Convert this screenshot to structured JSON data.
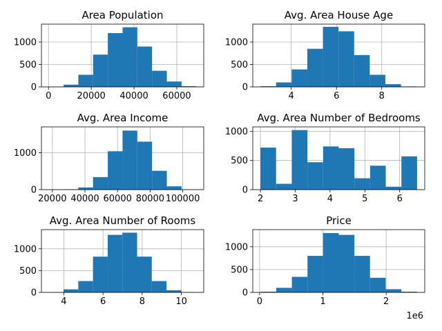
{
  "figure": {
    "background": "#ffffff",
    "bar_color": "#1f77b4",
    "grid": true
  },
  "chart_data": [
    {
      "type": "bar",
      "title": "Area Population",
      "bins": [
        [
          172.6,
          7066.9
        ],
        [
          7066.9,
          13961.2
        ],
        [
          13961.2,
          20855.5
        ],
        [
          20855.5,
          27749.8
        ],
        [
          27749.8,
          34644.1
        ],
        [
          34644.1,
          41538.4
        ],
        [
          41538.4,
          48432.7
        ],
        [
          48432.7,
          55327.0
        ],
        [
          55327.0,
          62221.3
        ],
        [
          62221.3,
          69115.6
        ]
      ],
      "values": [
        5,
        50,
        270,
        720,
        1200,
        1330,
        900,
        360,
        120,
        15
      ],
      "xlim": [
        -3300,
        72600
      ],
      "ylim": [
        0,
        1400
      ],
      "xticks": [
        {
          "value": 0,
          "label": "0"
        },
        {
          "value": 20000,
          "label": "20000"
        },
        {
          "value": 40000,
          "label": "40000"
        },
        {
          "value": 60000,
          "label": "60000"
        }
      ],
      "yticks": [
        {
          "value": 0,
          "label": "0"
        },
        {
          "value": 500,
          "label": "500"
        },
        {
          "value": 1000,
          "label": "1000"
        }
      ]
    },
    {
      "type": "bar",
      "title": "Avg. Area House Age",
      "bins": [
        [
          2.64,
          3.33
        ],
        [
          3.33,
          4.02
        ],
        [
          4.02,
          4.71
        ],
        [
          4.71,
          5.4
        ],
        [
          5.4,
          6.09
        ],
        [
          6.09,
          6.78
        ],
        [
          6.78,
          7.47
        ],
        [
          7.47,
          8.16
        ],
        [
          8.16,
          8.85
        ],
        [
          8.85,
          9.54
        ]
      ],
      "values": [
        15,
        100,
        390,
        850,
        1340,
        1240,
        710,
        270,
        60,
        10
      ],
      "xlim": [
        2.3,
        9.9
      ],
      "ylim": [
        0,
        1400
      ],
      "xticks": [
        {
          "value": 4,
          "label": "4"
        },
        {
          "value": 6,
          "label": "6"
        },
        {
          "value": 8,
          "label": "8"
        }
      ],
      "yticks": [
        {
          "value": 0,
          "label": "0"
        },
        {
          "value": 500,
          "label": "500"
        },
        {
          "value": 1000,
          "label": "1000"
        }
      ]
    },
    {
      "type": "bar",
      "title": "Avg. Area Income",
      "bins": [
        [
          17797,
          26853
        ],
        [
          26853,
          35909
        ],
        [
          35909,
          44965
        ],
        [
          44965,
          54021
        ],
        [
          54021,
          63077
        ],
        [
          63077,
          72133
        ],
        [
          72133,
          81189
        ],
        [
          81189,
          90245
        ],
        [
          90245,
          99301
        ],
        [
          99301,
          108357
        ]
      ],
      "values": [
        2,
        10,
        60,
        340,
        1040,
        1600,
        1300,
        510,
        90,
        5
      ],
      "xlim": [
        13300,
        112900
      ],
      "ylim": [
        0,
        1700
      ],
      "xticks": [
        {
          "value": 20000,
          "label": "20000"
        },
        {
          "value": 40000,
          "label": "40000"
        },
        {
          "value": 60000,
          "label": "60000"
        },
        {
          "value": 80000,
          "label": "80000"
        },
        {
          "value": 100000,
          "label": "100000"
        }
      ],
      "yticks": [
        {
          "value": 0,
          "label": "0"
        },
        {
          "value": 1000,
          "label": "1000"
        }
      ]
    },
    {
      "type": "bar",
      "title": "Avg. Area Number of Bedrooms",
      "bins": [
        [
          2.0,
          2.45
        ],
        [
          2.45,
          2.9
        ],
        [
          2.9,
          3.35
        ],
        [
          3.35,
          3.8
        ],
        [
          3.8,
          4.25
        ],
        [
          4.25,
          4.7
        ],
        [
          4.7,
          5.15
        ],
        [
          5.15,
          5.6
        ],
        [
          5.6,
          6.05
        ],
        [
          6.05,
          6.5
        ]
      ],
      "values": [
        720,
        100,
        1020,
        470,
        740,
        710,
        195,
        410,
        50,
        570
      ],
      "xlim": [
        1.78,
        6.72
      ],
      "ylim": [
        0,
        1075
      ],
      "xticks": [
        {
          "value": 2,
          "label": "2"
        },
        {
          "value": 3,
          "label": "3"
        },
        {
          "value": 4,
          "label": "4"
        },
        {
          "value": 5,
          "label": "5"
        },
        {
          "value": 6,
          "label": "6"
        }
      ],
      "yticks": [
        {
          "value": 0,
          "label": "0"
        },
        {
          "value": 500,
          "label": "500"
        },
        {
          "value": 1000,
          "label": "1000"
        }
      ]
    },
    {
      "type": "bar",
      "title": "Avg. Area Number of Rooms",
      "bins": [
        [
          3.24,
          3.99
        ],
        [
          3.99,
          4.74
        ],
        [
          4.74,
          5.49
        ],
        [
          5.49,
          6.24
        ],
        [
          6.24,
          6.99
        ],
        [
          6.99,
          7.74
        ],
        [
          7.74,
          8.49
        ],
        [
          8.49,
          9.24
        ],
        [
          9.24,
          9.99
        ],
        [
          9.99,
          10.76
        ]
      ],
      "values": [
        5,
        70,
        260,
        820,
        1320,
        1370,
        820,
        260,
        50,
        5
      ],
      "xlim": [
        2.86,
        11.14
      ],
      "ylim": [
        0,
        1440
      ],
      "xticks": [
        {
          "value": 4,
          "label": "4"
        },
        {
          "value": 6,
          "label": "6"
        },
        {
          "value": 8,
          "label": "8"
        },
        {
          "value": 10,
          "label": "10"
        }
      ],
      "yticks": [
        {
          "value": 0,
          "label": "0"
        },
        {
          "value": 500,
          "label": "500"
        },
        {
          "value": 1000,
          "label": "1000"
        }
      ]
    },
    {
      "type": "bar",
      "title": "Price",
      "offset_label": "1e6",
      "bins": [
        [
          0.016,
          0.263
        ],
        [
          0.263,
          0.51
        ],
        [
          0.51,
          0.757
        ],
        [
          0.757,
          1.004
        ],
        [
          1.004,
          1.251
        ],
        [
          1.251,
          1.498
        ],
        [
          1.498,
          1.745
        ],
        [
          1.745,
          1.992
        ],
        [
          1.992,
          2.239
        ],
        [
          2.239,
          2.486
        ]
      ],
      "values": [
        15,
        100,
        340,
        800,
        1300,
        1260,
        800,
        320,
        70,
        15
      ],
      "xlim": [
        -0.108,
        2.61
      ],
      "ylim": [
        0,
        1375
      ],
      "xticks": [
        {
          "value": 0,
          "label": "0"
        },
        {
          "value": 1,
          "label": "1"
        },
        {
          "value": 2,
          "label": "2"
        }
      ],
      "yticks": [
        {
          "value": 0,
          "label": "0"
        },
        {
          "value": 500,
          "label": "500"
        },
        {
          "value": 1000,
          "label": "1000"
        }
      ]
    }
  ]
}
